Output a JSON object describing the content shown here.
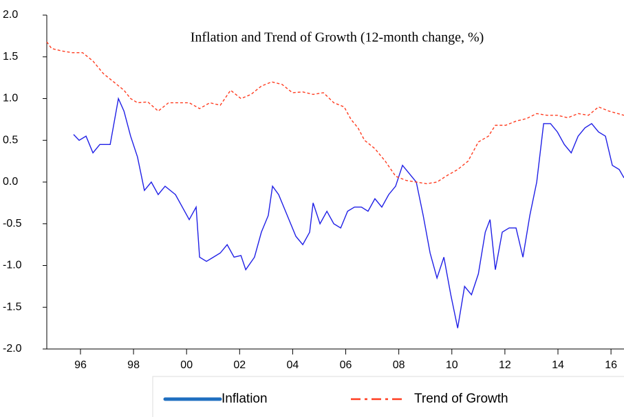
{
  "chart_data": {
    "type": "line",
    "title": "Inflation and Trend of Growth (12-month change, %)",
    "xlim": [
      1994.73,
      2016.49
    ],
    "xticks": [
      {
        "value": 1996,
        "label": "96"
      },
      {
        "value": 1998,
        "label": "98"
      },
      {
        "value": 2000,
        "label": "00"
      },
      {
        "value": 2002,
        "label": "02"
      },
      {
        "value": 2004,
        "label": "04"
      },
      {
        "value": 2006,
        "label": "06"
      },
      {
        "value": 2008,
        "label": "08"
      },
      {
        "value": 2010,
        "label": "10"
      },
      {
        "value": 2012,
        "label": "12"
      },
      {
        "value": 2014,
        "label": "14"
      },
      {
        "value": 2016,
        "label": "16"
      }
    ],
    "ylim": [
      -2,
      2
    ],
    "yticks": [
      {
        "value": -2,
        "label": "-2.0"
      },
      {
        "value": -1.5,
        "label": "-1.5"
      },
      {
        "value": -1,
        "label": "-1.0"
      },
      {
        "value": -0.5,
        "label": "-0.5"
      },
      {
        "value": 0,
        "label": "0.0"
      },
      {
        "value": 0.5,
        "label": "0.5"
      },
      {
        "value": 1,
        "label": "1.0"
      },
      {
        "value": 1.5,
        "label": "1.5"
      },
      {
        "value": 2,
        "label": "2.0"
      }
    ],
    "legend": "bottom",
    "series": [
      {
        "name": "Inflation",
        "color": "#1f1fe6",
        "style": "solid",
        "x": [
          1995.74,
          1995.95,
          1996.21,
          1996.47,
          1996.73,
          1997.12,
          1997.43,
          1997.64,
          1997.89,
          1998.15,
          1998.41,
          1998.67,
          1998.93,
          1999.19,
          1999.58,
          1999.84,
          2000.1,
          2000.36,
          2000.49,
          2000.75,
          2001.01,
          2001.27,
          2001.53,
          2001.79,
          2002.05,
          2002.23,
          2002.56,
          2002.82,
          2003.08,
          2003.24,
          2003.47,
          2003.73,
          2004.12,
          2004.38,
          2004.64,
          2004.77,
          2005.03,
          2005.29,
          2005.55,
          2005.81,
          2006.07,
          2006.33,
          2006.59,
          2006.84,
          2007.1,
          2007.36,
          2007.62,
          2007.88,
          2008.14,
          2008.4,
          2008.66,
          2008.92,
          2009.18,
          2009.44,
          2009.7,
          2009.96,
          2010.22,
          2010.48,
          2010.74,
          2011.0,
          2011.26,
          2011.44,
          2011.64,
          2011.9,
          2012.16,
          2012.42,
          2012.68,
          2012.94,
          2013.2,
          2013.46,
          2013.72,
          2013.98,
          2014.24,
          2014.5,
          2014.76,
          2015.02,
          2015.27,
          2015.53,
          2015.79,
          2016.05,
          2016.31,
          2016.49
        ],
        "values": [
          0.57,
          0.5,
          0.55,
          0.35,
          0.45,
          0.45,
          1.0,
          0.85,
          0.55,
          0.3,
          -0.1,
          0.0,
          -0.15,
          -0.05,
          -0.15,
          -0.3,
          -0.45,
          -0.3,
          -0.9,
          -0.95,
          -0.9,
          -0.85,
          -0.75,
          -0.9,
          -0.88,
          -1.05,
          -0.9,
          -0.6,
          -0.4,
          -0.05,
          -0.15,
          -0.35,
          -0.65,
          -0.75,
          -0.6,
          -0.25,
          -0.5,
          -0.35,
          -0.5,
          -0.55,
          -0.35,
          -0.3,
          -0.3,
          -0.35,
          -0.2,
          -0.3,
          -0.15,
          -0.05,
          0.2,
          0.1,
          0.0,
          -0.4,
          -0.85,
          -1.15,
          -0.9,
          -1.35,
          -1.75,
          -1.25,
          -1.35,
          -1.1,
          -0.6,
          -0.45,
          -1.05,
          -0.6,
          -0.55,
          -0.55,
          -0.9,
          -0.4,
          0.0,
          0.7,
          0.7,
          0.6,
          0.45,
          0.35,
          0.55,
          0.65,
          0.7,
          0.6,
          0.55,
          0.2,
          0.15,
          0.05
        ]
      },
      {
        "name": "Trend of Growth",
        "color": "#ff3b1f",
        "style": "dashed",
        "x": [
          1994.73,
          1994.91,
          1995.3,
          1995.69,
          1996.08,
          1996.47,
          1996.86,
          1997.25,
          1997.64,
          1997.89,
          1998.15,
          1998.54,
          1998.93,
          1999.32,
          1999.71,
          2000.1,
          2000.49,
          2000.88,
          2001.27,
          2001.66,
          2002.05,
          2002.43,
          2002.82,
          2003.21,
          2003.6,
          2003.99,
          2004.38,
          2004.77,
          2005.16,
          2005.55,
          2005.94,
          2006.2,
          2006.46,
          2006.71,
          2007.1,
          2007.49,
          2007.88,
          2008.27,
          2008.66,
          2009.05,
          2009.44,
          2009.83,
          2010.22,
          2010.61,
          2011.0,
          2011.38,
          2011.64,
          2012.03,
          2012.42,
          2012.81,
          2013.2,
          2013.59,
          2013.98,
          2014.37,
          2014.76,
          2015.15,
          2015.53,
          2015.92,
          2016.49
        ],
        "values": [
          1.68,
          1.6,
          1.57,
          1.55,
          1.55,
          1.45,
          1.3,
          1.2,
          1.1,
          1.0,
          0.95,
          0.96,
          0.85,
          0.95,
          0.95,
          0.95,
          0.88,
          0.95,
          0.92,
          1.1,
          1.0,
          1.05,
          1.15,
          1.2,
          1.17,
          1.07,
          1.08,
          1.05,
          1.07,
          0.95,
          0.9,
          0.75,
          0.65,
          0.5,
          0.4,
          0.25,
          0.07,
          0.02,
          0.0,
          -0.02,
          0.0,
          0.08,
          0.15,
          0.25,
          0.48,
          0.55,
          0.68,
          0.68,
          0.73,
          0.76,
          0.82,
          0.8,
          0.8,
          0.77,
          0.82,
          0.8,
          0.9,
          0.85,
          0.8
        ]
      }
    ]
  }
}
